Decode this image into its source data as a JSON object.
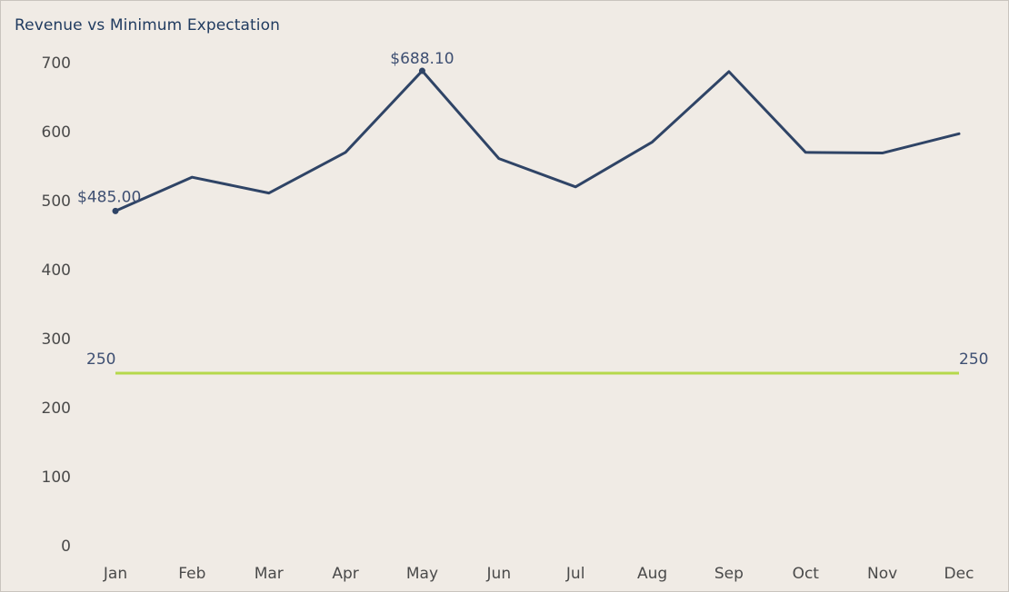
{
  "chart_data": {
    "type": "line",
    "title": "Revenue vs Minimum Expectation",
    "xlabel": "",
    "ylabel": "",
    "categories": [
      "Jan",
      "Feb",
      "Mar",
      "Apr",
      "May",
      "Jun",
      "Jul",
      "Aug",
      "Sep",
      "Oct",
      "Nov",
      "Dec"
    ],
    "series": [
      {
        "values": [
          485.0,
          534,
          511,
          570,
          688.1,
          561,
          520,
          585,
          687,
          570,
          569,
          597
        ],
        "color": "#2f4466"
      }
    ],
    "reference_line": {
      "value": 250,
      "color": "#b5d84b",
      "label_left": "250",
      "label_right": "250"
    },
    "data_labels": [
      {
        "index": 0,
        "text": "$485.00"
      },
      {
        "index": 4,
        "text": "$688.10"
      }
    ],
    "y_ticks": [
      "0",
      "100",
      "200",
      "300",
      "400",
      "500",
      "600",
      "700"
    ],
    "ylim": [
      0,
      700
    ],
    "grid": false,
    "legend": "none"
  }
}
